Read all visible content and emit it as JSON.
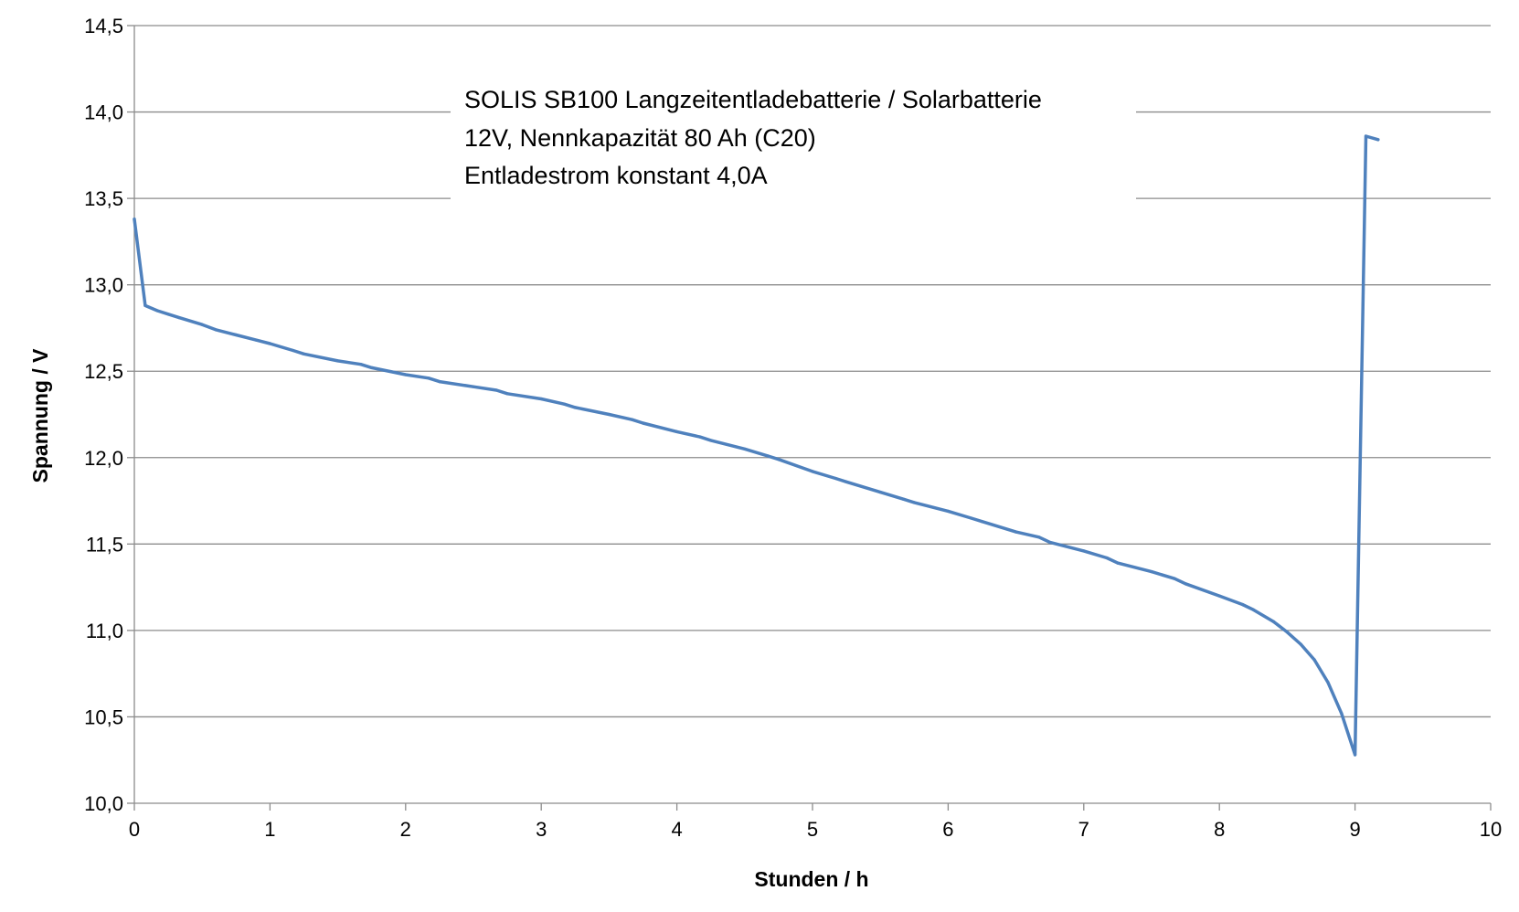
{
  "chart_data": {
    "type": "line",
    "title": "",
    "xlabel": "Stunden / h",
    "ylabel": "Spannung / V",
    "xlim": [
      0,
      10
    ],
    "ylim": [
      10.0,
      14.5
    ],
    "xticks": [
      0,
      1,
      2,
      3,
      4,
      5,
      6,
      7,
      8,
      9,
      10
    ],
    "xtick_labels": [
      "0",
      "1",
      "2",
      "3",
      "4",
      "5",
      "6",
      "7",
      "8",
      "9",
      "10"
    ],
    "yticks": [
      10.0,
      10.5,
      11.0,
      11.5,
      12.0,
      12.5,
      13.0,
      13.5,
      14.0,
      14.5
    ],
    "ytick_labels": [
      "10,0",
      "10,5",
      "11,0",
      "11,5",
      "12,0",
      "12,5",
      "13,0",
      "13,5",
      "14,0",
      "14,5"
    ],
    "grid": true,
    "legend": "none",
    "annotation": [
      "SOLIS SB100 Langzeitentladebatterie / Solarbatterie",
      "12V, Nennkapazität 80 Ah (C20)",
      "Entladestrom konstant 4,0A"
    ],
    "series": [
      {
        "name": "Spannung",
        "color": "#4f81bd",
        "x": [
          0,
          0.08,
          0.17,
          0.25,
          0.33,
          0.5,
          0.6,
          0.75,
          0.9,
          1.0,
          1.17,
          1.25,
          1.5,
          1.67,
          1.75,
          2.0,
          2.17,
          2.25,
          2.5,
          2.67,
          2.75,
          3.0,
          3.17,
          3.25,
          3.5,
          3.67,
          3.75,
          4.0,
          4.17,
          4.25,
          4.5,
          4.67,
          4.75,
          5.0,
          5.17,
          5.25,
          5.5,
          5.67,
          5.75,
          6.0,
          6.17,
          6.25,
          6.5,
          6.67,
          6.75,
          7.0,
          7.17,
          7.25,
          7.5,
          7.67,
          7.75,
          8.0,
          8.17,
          8.25,
          8.4,
          8.5,
          8.6,
          8.7,
          8.8,
          8.9,
          9.0,
          9.08,
          9.17
        ],
        "y": [
          13.38,
          12.88,
          12.85,
          12.83,
          12.81,
          12.77,
          12.74,
          12.71,
          12.68,
          12.66,
          12.62,
          12.6,
          12.56,
          12.54,
          12.52,
          12.48,
          12.46,
          12.44,
          12.41,
          12.39,
          12.37,
          12.34,
          12.31,
          12.29,
          12.25,
          12.22,
          12.2,
          12.15,
          12.12,
          12.1,
          12.05,
          12.01,
          11.99,
          11.92,
          11.88,
          11.86,
          11.8,
          11.76,
          11.74,
          11.69,
          11.65,
          11.63,
          11.57,
          11.54,
          11.51,
          11.46,
          11.42,
          11.39,
          11.34,
          11.3,
          11.27,
          11.2,
          11.15,
          11.12,
          11.05,
          10.99,
          10.92,
          10.83,
          10.7,
          10.52,
          10.28,
          13.86,
          13.84
        ]
      }
    ]
  }
}
